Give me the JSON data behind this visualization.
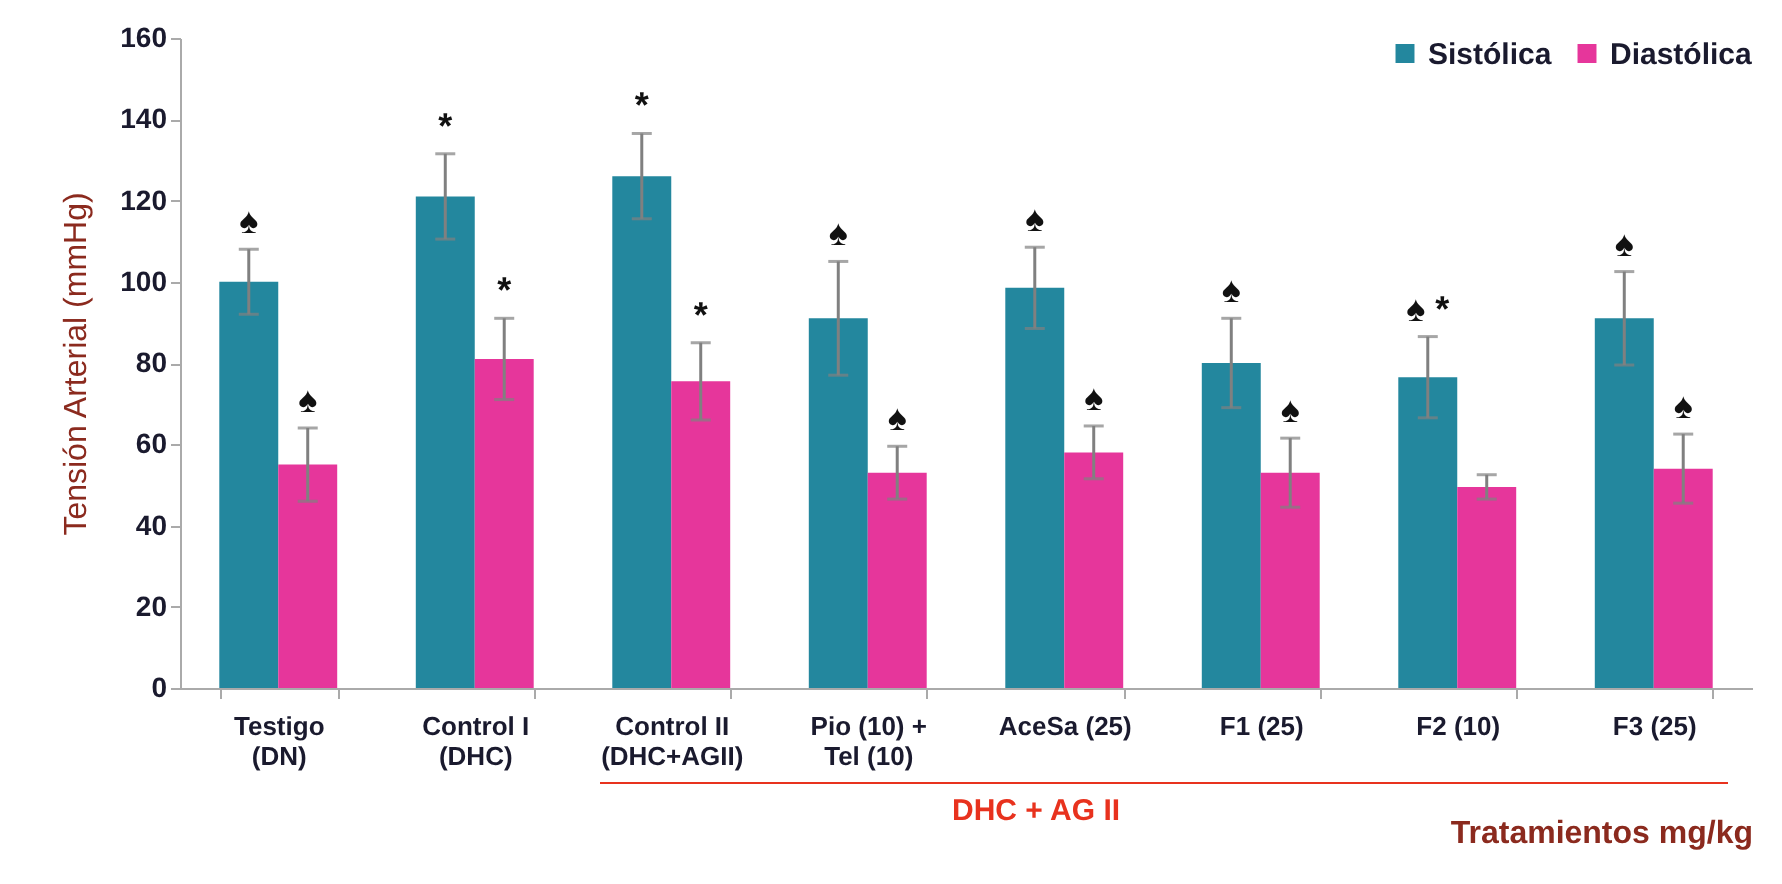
{
  "chart_data": {
    "type": "bar",
    "xlabel": "Tratamientos mg/kg",
    "ylabel": "Tensión Arterial (mmHg)",
    "categories": [
      "Testigo\n(DN)",
      "Control I\n(DHC)",
      "Control II\n(DHC+AGII)",
      "Pio (10) +\nTel (10)",
      "AceSa (25)",
      "F1 (25)",
      "F2 (10)",
      "F3 (25)"
    ],
    "series": [
      {
        "name": "Sistólica",
        "color": "#23879e",
        "values": [
          100,
          121,
          126,
          91,
          98.5,
          80,
          76.5,
          91
        ],
        "errors": [
          8,
          10.5,
          10.5,
          14,
          10,
          11,
          10,
          11.5
        ]
      },
      {
        "name": "Diastólica",
        "color": "#e6369b",
        "values": [
          55,
          81,
          75.5,
          53,
          58,
          53,
          49.5,
          54
        ],
        "errors": [
          9,
          10,
          9.5,
          6.5,
          6.5,
          8.5,
          3,
          8.5
        ]
      }
    ],
    "ylim": [
      0,
      160
    ],
    "yticks": [
      0,
      20,
      40,
      60,
      80,
      100,
      120,
      140,
      160
    ],
    "grid": false,
    "legend": "top right",
    "annotations": [
      {
        "text": "♠",
        "x": "Testigo\n(DN)",
        "y": 100
      },
      {
        "text": "♠",
        "x": "Testigo\n(DN)",
        "y": 55
      },
      {
        "text": "*",
        "x": "Control I\n(DHC)",
        "y": 121
      },
      {
        "text": "*",
        "x": "Control I\n(DHC)",
        "y": 81
      },
      {
        "text": "*",
        "x": "Control II\n(DHC+AGII)",
        "y": 126
      },
      {
        "text": "*",
        "x": "Control II\n(DHC+AGII)",
        "y": 75.5
      },
      {
        "text": "♠",
        "x": "Pio (10) +\nTel (10)",
        "y": 91
      },
      {
        "text": "♠",
        "x": "Pio (10) +\nTel (10)",
        "y": 53
      },
      {
        "text": "♠",
        "x": "AceSa (25)",
        "y": 98.5
      },
      {
        "text": "♠",
        "x": "AceSa (25)",
        "y": 58
      },
      {
        "text": "♠",
        "x": "F1 (25)",
        "y": 80
      },
      {
        "text": "♠",
        "x": "F1 (25)",
        "y": 53
      },
      {
        "text": "♠ *",
        "x": "F2 (10)",
        "y": 76.5
      },
      {
        "text": "♠",
        "x": "F3 (25)",
        "y": 91
      },
      {
        "text": "♠",
        "x": "F3 (25)",
        "y": 54
      },
      "DHC + AG II"
    ]
  }
}
